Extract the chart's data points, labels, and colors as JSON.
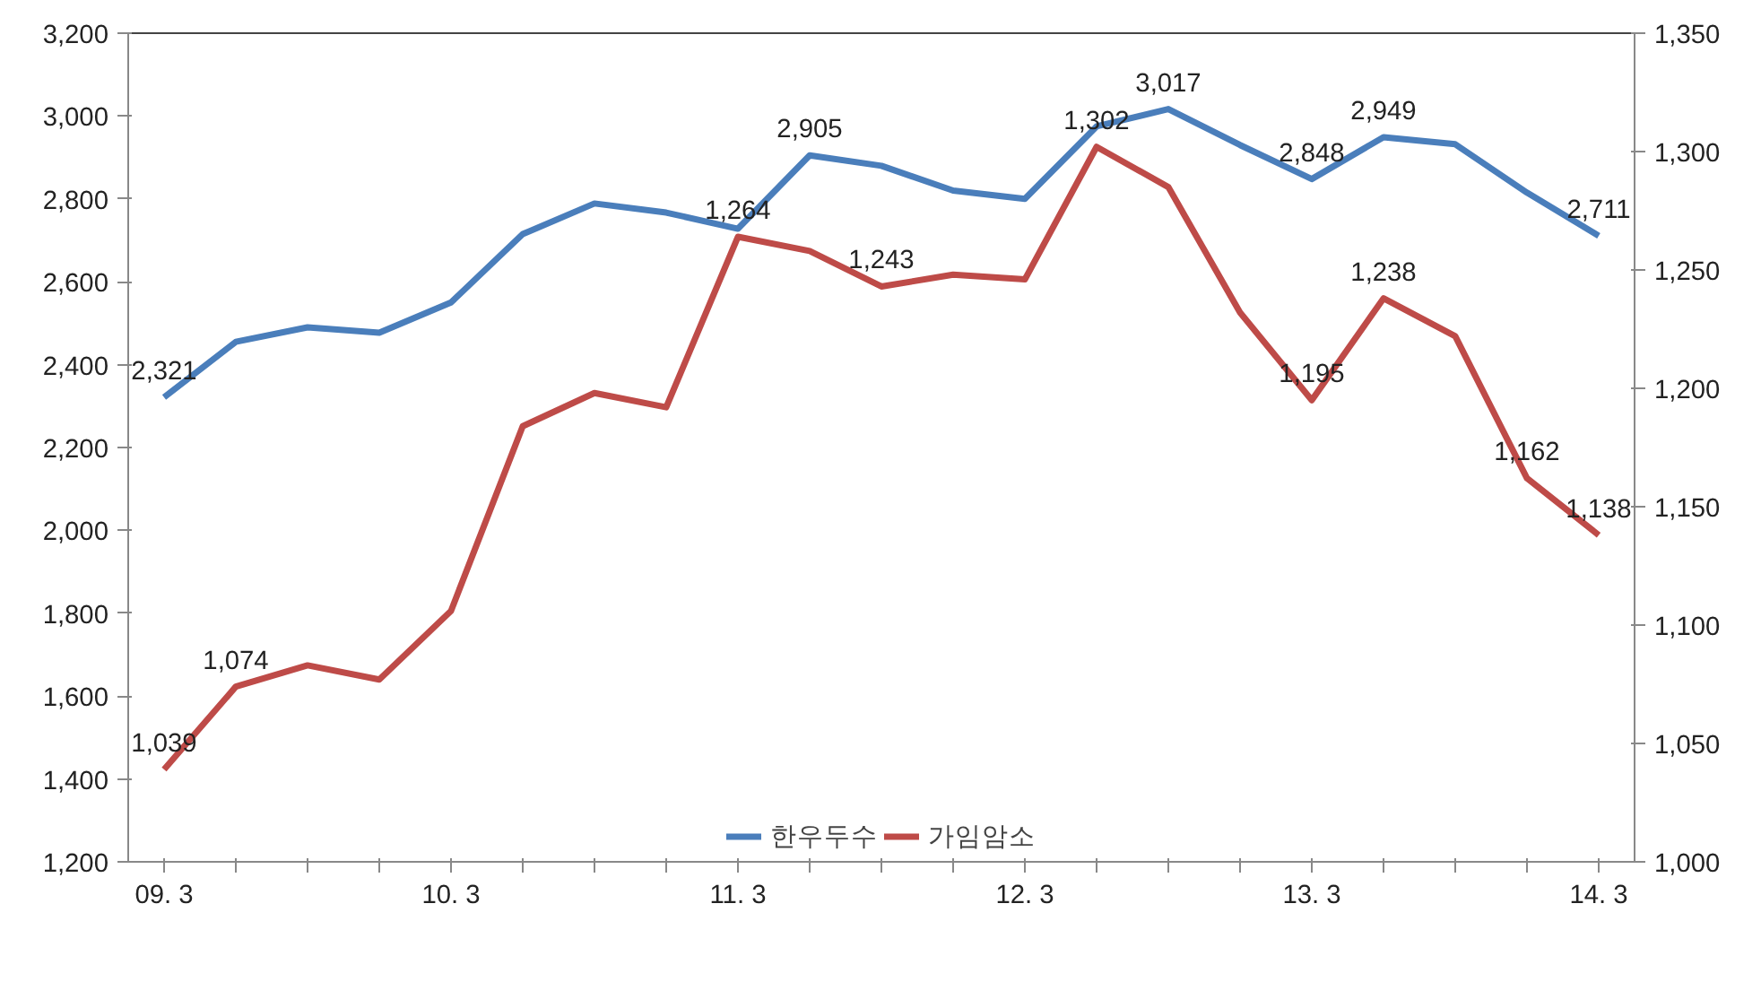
{
  "chart_data": {
    "type": "line",
    "categories": [
      "09. 3",
      null,
      null,
      null,
      "10. 3",
      null,
      null,
      null,
      "11. 3",
      null,
      null,
      null,
      "12. 3",
      null,
      null,
      null,
      "13. 3",
      null,
      null,
      null,
      "14. 3"
    ],
    "series": [
      {
        "name": "한우두수",
        "color": "#4a7ebb",
        "values": [
          2321,
          2455,
          2490,
          2477,
          2550,
          2715,
          2789,
          2767,
          2728,
          2905,
          2880,
          2820,
          2800,
          2975,
          3017,
          2930,
          2848,
          2949,
          2932,
          2815,
          2711
        ],
        "value_labels": [
          "2,321",
          null,
          null,
          null,
          null,
          null,
          null,
          null,
          null,
          "2,905",
          null,
          null,
          null,
          null,
          "3,017",
          null,
          "2,848",
          "2,949",
          null,
          null,
          "2,711"
        ]
      },
      {
        "name": "가임암소",
        "color": "#be4b48",
        "axis": "y2",
        "values": [
          1039,
          1074,
          1083,
          1077,
          1106,
          1184,
          1198,
          1192,
          1264,
          1258,
          1243,
          1248,
          1246,
          1302,
          1285,
          1232,
          1195,
          1238,
          1222,
          1162,
          1138
        ],
        "value_labels": [
          "1,039",
          "1,074",
          null,
          null,
          null,
          null,
          null,
          null,
          "1,264",
          null,
          "1,243",
          null,
          null,
          "1,302",
          null,
          null,
          "1,195",
          "1,238",
          null,
          "1,162",
          "1,138"
        ]
      }
    ],
    "ylim": [
      1200,
      3200
    ],
    "yticks": [
      {
        "value": 1200,
        "label": "1,200"
      },
      {
        "value": 1400,
        "label": "1,400"
      },
      {
        "value": 1600,
        "label": "1,600"
      },
      {
        "value": 1800,
        "label": "1,800"
      },
      {
        "value": 2000,
        "label": "2,000"
      },
      {
        "value": 2200,
        "label": "2,200"
      },
      {
        "value": 2400,
        "label": "2,400"
      },
      {
        "value": 2600,
        "label": "2,600"
      },
      {
        "value": 2800,
        "label": "2,800"
      },
      {
        "value": 3000,
        "label": "3,000"
      },
      {
        "value": 3200,
        "label": "3,200"
      }
    ],
    "y2lim": [
      1000,
      1350
    ],
    "y2ticks": [
      {
        "value": 1000,
        "label": "1,000"
      },
      {
        "value": 1050,
        "label": "1,050"
      },
      {
        "value": 1100,
        "label": "1,100"
      },
      {
        "value": 1150,
        "label": "1,150"
      },
      {
        "value": 1200,
        "label": "1,200"
      },
      {
        "value": 1250,
        "label": "1,250"
      },
      {
        "value": 1300,
        "label": "1,300"
      },
      {
        "value": 1350,
        "label": "1,350"
      }
    ],
    "grid": false,
    "legend": "bottom",
    "marker": "none",
    "line_style": "solid"
  }
}
